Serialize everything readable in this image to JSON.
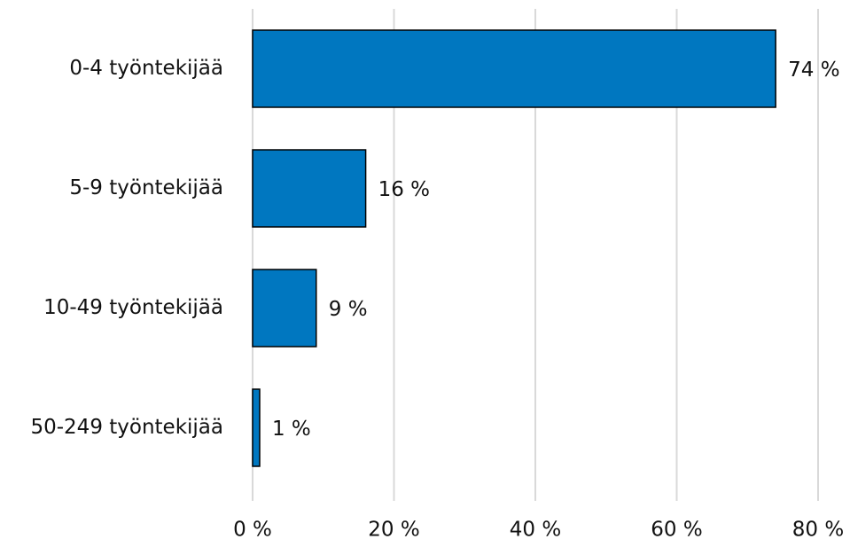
{
  "chart_data": {
    "type": "bar",
    "orientation": "horizontal",
    "categories": [
      "0-4 työntekijää",
      "5-9 työntekijää",
      "10-49 työntekijää",
      "50-249 työntekijää"
    ],
    "values": [
      74,
      16,
      9,
      1
    ],
    "value_labels": [
      "74 %",
      "16 %",
      "9 %",
      "1 %"
    ],
    "color": "#0077c0",
    "xlim": [
      0,
      80
    ],
    "xticks": [
      {
        "value": 0,
        "label": "0 %"
      },
      {
        "value": 20,
        "label": "20 %"
      },
      {
        "value": 40,
        "label": "40 %"
      },
      {
        "value": 60,
        "label": "60 %"
      },
      {
        "value": 80,
        "label": "80 %"
      }
    ],
    "grid": true
  }
}
